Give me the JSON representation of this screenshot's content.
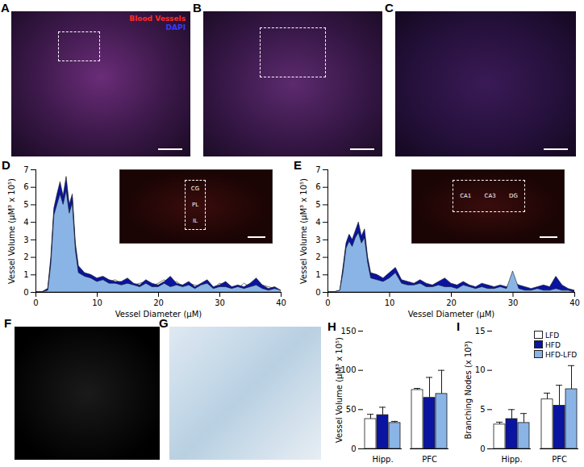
{
  "panels": [
    {
      "label": "A",
      "texts": [
        {
          "text": "Blood Vessels",
          "color": "#ff2a2a"
        },
        {
          "text": "DAPI",
          "color": "#3a3aff"
        }
      ]
    },
    {
      "label": "B"
    },
    {
      "label": "C"
    },
    {
      "label": "F"
    },
    {
      "label": "G"
    }
  ],
  "chart_data": [
    {
      "panel": "D",
      "type": "area",
      "xlabel": "Vessel Diameter (μM)",
      "ylabel": "Vessel Volume (μM³ x 10⁵)",
      "inset_labels": [
        "CG",
        "PL",
        "IL"
      ],
      "x": [
        0,
        1,
        2,
        2.5,
        3,
        3.5,
        4,
        4.5,
        5,
        5.5,
        6,
        6.5,
        7,
        8,
        9,
        10,
        11,
        12,
        13,
        14,
        15,
        16,
        17,
        18,
        19,
        20,
        21,
        22,
        23,
        24,
        25,
        26,
        27,
        28,
        29,
        30,
        31,
        32,
        33,
        34,
        35,
        36,
        37,
        38,
        39,
        40
      ],
      "xlim": [
        0,
        40
      ],
      "xticks": [
        0,
        10,
        20,
        30,
        40
      ],
      "ylim": [
        0,
        7
      ],
      "yticks": [
        0,
        1,
        2,
        3,
        4,
        5,
        6,
        7
      ],
      "series": [
        {
          "name": "LFD",
          "color": "#ffffff",
          "values": [
            0,
            0,
            0.2,
            1.8,
            4.6,
            5.3,
            5.8,
            5.2,
            6.1,
            4.8,
            5.4,
            2.6,
            1.3,
            1.0,
            0.9,
            0.7,
            0.8,
            0.6,
            0.7,
            0.5,
            0.6,
            0.4,
            0.5,
            0.6,
            0.3,
            0.5,
            0.7,
            0.4,
            0.6,
            0.3,
            0.5,
            0.4,
            0.3,
            0.6,
            0.2,
            0.5,
            0.4,
            0.3,
            0.2,
            0.5,
            0.3,
            0.2,
            0.4,
            0.3,
            0.2,
            0.1
          ]
        },
        {
          "name": "HFD",
          "color": "#0a14a0",
          "values": [
            0,
            0,
            0.2,
            2.0,
            4.8,
            5.6,
            6.3,
            5.5,
            6.6,
            5.0,
            5.6,
            2.8,
            1.5,
            1.1,
            1.0,
            0.8,
            0.9,
            0.7,
            0.6,
            0.6,
            0.8,
            0.5,
            0.4,
            0.7,
            0.5,
            0.4,
            0.6,
            0.9,
            0.5,
            0.4,
            0.6,
            0.3,
            0.5,
            0.7,
            0.3,
            0.4,
            0.6,
            0.3,
            0.4,
            0.3,
            0.5,
            0.8,
            0.4,
            0.2,
            0.3,
            0.1
          ]
        },
        {
          "name": "HFD-LFD",
          "color": "#8ab4e6",
          "values": [
            0,
            0,
            0.1,
            1.6,
            4.4,
            5.0,
            5.6,
            5.0,
            5.8,
            4.5,
            5.1,
            2.4,
            1.1,
            0.9,
            0.8,
            0.6,
            0.7,
            0.5,
            0.5,
            0.4,
            0.5,
            0.4,
            0.3,
            0.5,
            0.3,
            0.3,
            0.5,
            0.3,
            0.4,
            0.3,
            0.4,
            0.2,
            0.4,
            0.5,
            0.2,
            0.3,
            0.3,
            0.2,
            0.3,
            0.2,
            0.3,
            0.4,
            0.2,
            0.1,
            0.2,
            0.1
          ]
        }
      ]
    },
    {
      "panel": "E",
      "type": "area",
      "xlabel": "Vessel Diameter (μM)",
      "ylabel": "Vessel Volume (μM³ x 10⁵)",
      "inset_labels": [
        "CA1",
        "CA3",
        "DG"
      ],
      "x": [
        0,
        1,
        2,
        2.5,
        3,
        3.5,
        4,
        4.5,
        5,
        5.5,
        6,
        6.5,
        7,
        8,
        9,
        10,
        11,
        12,
        13,
        14,
        15,
        16,
        17,
        18,
        19,
        20,
        21,
        22,
        23,
        24,
        25,
        26,
        27,
        28,
        29,
        30,
        31,
        32,
        33,
        34,
        35,
        36,
        37,
        38,
        39,
        40
      ],
      "xlim": [
        0,
        40
      ],
      "xticks": [
        0,
        10,
        20,
        30,
        40
      ],
      "ylim": [
        0,
        7
      ],
      "yticks": [
        0,
        1,
        2,
        3,
        4,
        5,
        6,
        7
      ],
      "series": [
        {
          "name": "LFD",
          "color": "#ffffff",
          "values": [
            0,
            0,
            0.1,
            1.2,
            2.6,
            3.0,
            2.7,
            3.2,
            3.6,
            2.9,
            3.3,
            1.8,
            0.9,
            0.8,
            0.7,
            0.9,
            1.2,
            0.6,
            0.5,
            0.4,
            0.6,
            0.4,
            0.3,
            0.5,
            0.3,
            0.4,
            0.3,
            0.5,
            0.3,
            0.2,
            0.4,
            0.3,
            0.2,
            0.3,
            0.2,
            0.2,
            0.3,
            0.2,
            0.1,
            0.2,
            0.2,
            0.1,
            0.2,
            0.1,
            0.1,
            0.0
          ]
        },
        {
          "name": "HFD",
          "color": "#0a14a0",
          "values": [
            0,
            0,
            0.1,
            1.4,
            2.8,
            3.3,
            3.0,
            3.5,
            4.0,
            3.2,
            3.6,
            2.0,
            1.1,
            1.0,
            0.8,
            1.1,
            1.4,
            0.7,
            0.6,
            0.5,
            0.7,
            0.5,
            0.4,
            0.6,
            0.8,
            0.5,
            0.4,
            0.6,
            0.4,
            0.3,
            0.5,
            0.4,
            0.3,
            0.4,
            0.3,
            0.6,
            0.4,
            0.3,
            0.2,
            0.3,
            0.4,
            0.3,
            0.9,
            0.4,
            0.2,
            0.1
          ]
        },
        {
          "name": "HFD-LFD",
          "color": "#8ab4e6",
          "values": [
            0,
            0,
            0.1,
            1.1,
            2.5,
            2.9,
            2.6,
            3.1,
            3.4,
            2.8,
            3.1,
            1.7,
            0.8,
            0.7,
            0.6,
            0.8,
            1.1,
            0.5,
            0.4,
            0.4,
            0.5,
            0.3,
            0.3,
            0.4,
            0.3,
            0.3,
            0.2,
            0.4,
            0.3,
            0.2,
            0.3,
            0.2,
            0.2,
            0.3,
            0.2,
            1.2,
            0.2,
            0.1,
            0.1,
            0.2,
            0.1,
            0.1,
            0.2,
            0.1,
            0.1,
            0.0
          ]
        }
      ]
    },
    {
      "panel": "H",
      "type": "bar",
      "ylabel": "Vessel Volume (μM³ x 10⁵)",
      "categories": [
        "Hipp.",
        "PFC"
      ],
      "ylim": [
        0,
        150
      ],
      "yticks": [
        0,
        50,
        100,
        150
      ],
      "series": [
        {
          "name": "LFD",
          "color": "#ffffff",
          "values": [
            38,
            75
          ],
          "errors": [
            6,
            2
          ]
        },
        {
          "name": "HFD",
          "color": "#0a14a0",
          "values": [
            43,
            65
          ],
          "errors": [
            10,
            26
          ]
        },
        {
          "name": "HFD-LFD",
          "color": "#8ab4e6",
          "values": [
            33,
            70
          ],
          "errors": [
            2,
            30
          ]
        }
      ]
    },
    {
      "panel": "I",
      "type": "bar",
      "ylabel": "Branching Nodes (x 10³)",
      "categories": [
        "Hipp.",
        "PFC"
      ],
      "ylim": [
        0,
        15
      ],
      "yticks": [
        0,
        5,
        10,
        15
      ],
      "legend": "top-right",
      "series": [
        {
          "name": "LFD",
          "color": "#ffffff",
          "values": [
            3.1,
            6.3
          ],
          "errors": [
            0.3,
            0.8
          ]
        },
        {
          "name": "HFD",
          "color": "#0a14a0",
          "values": [
            3.8,
            5.5
          ],
          "errors": [
            1.2,
            2.6
          ]
        },
        {
          "name": "HFD-LFD",
          "color": "#8ab4e6",
          "values": [
            3.3,
            7.6
          ],
          "errors": [
            1.2,
            3.0
          ]
        }
      ]
    }
  ]
}
